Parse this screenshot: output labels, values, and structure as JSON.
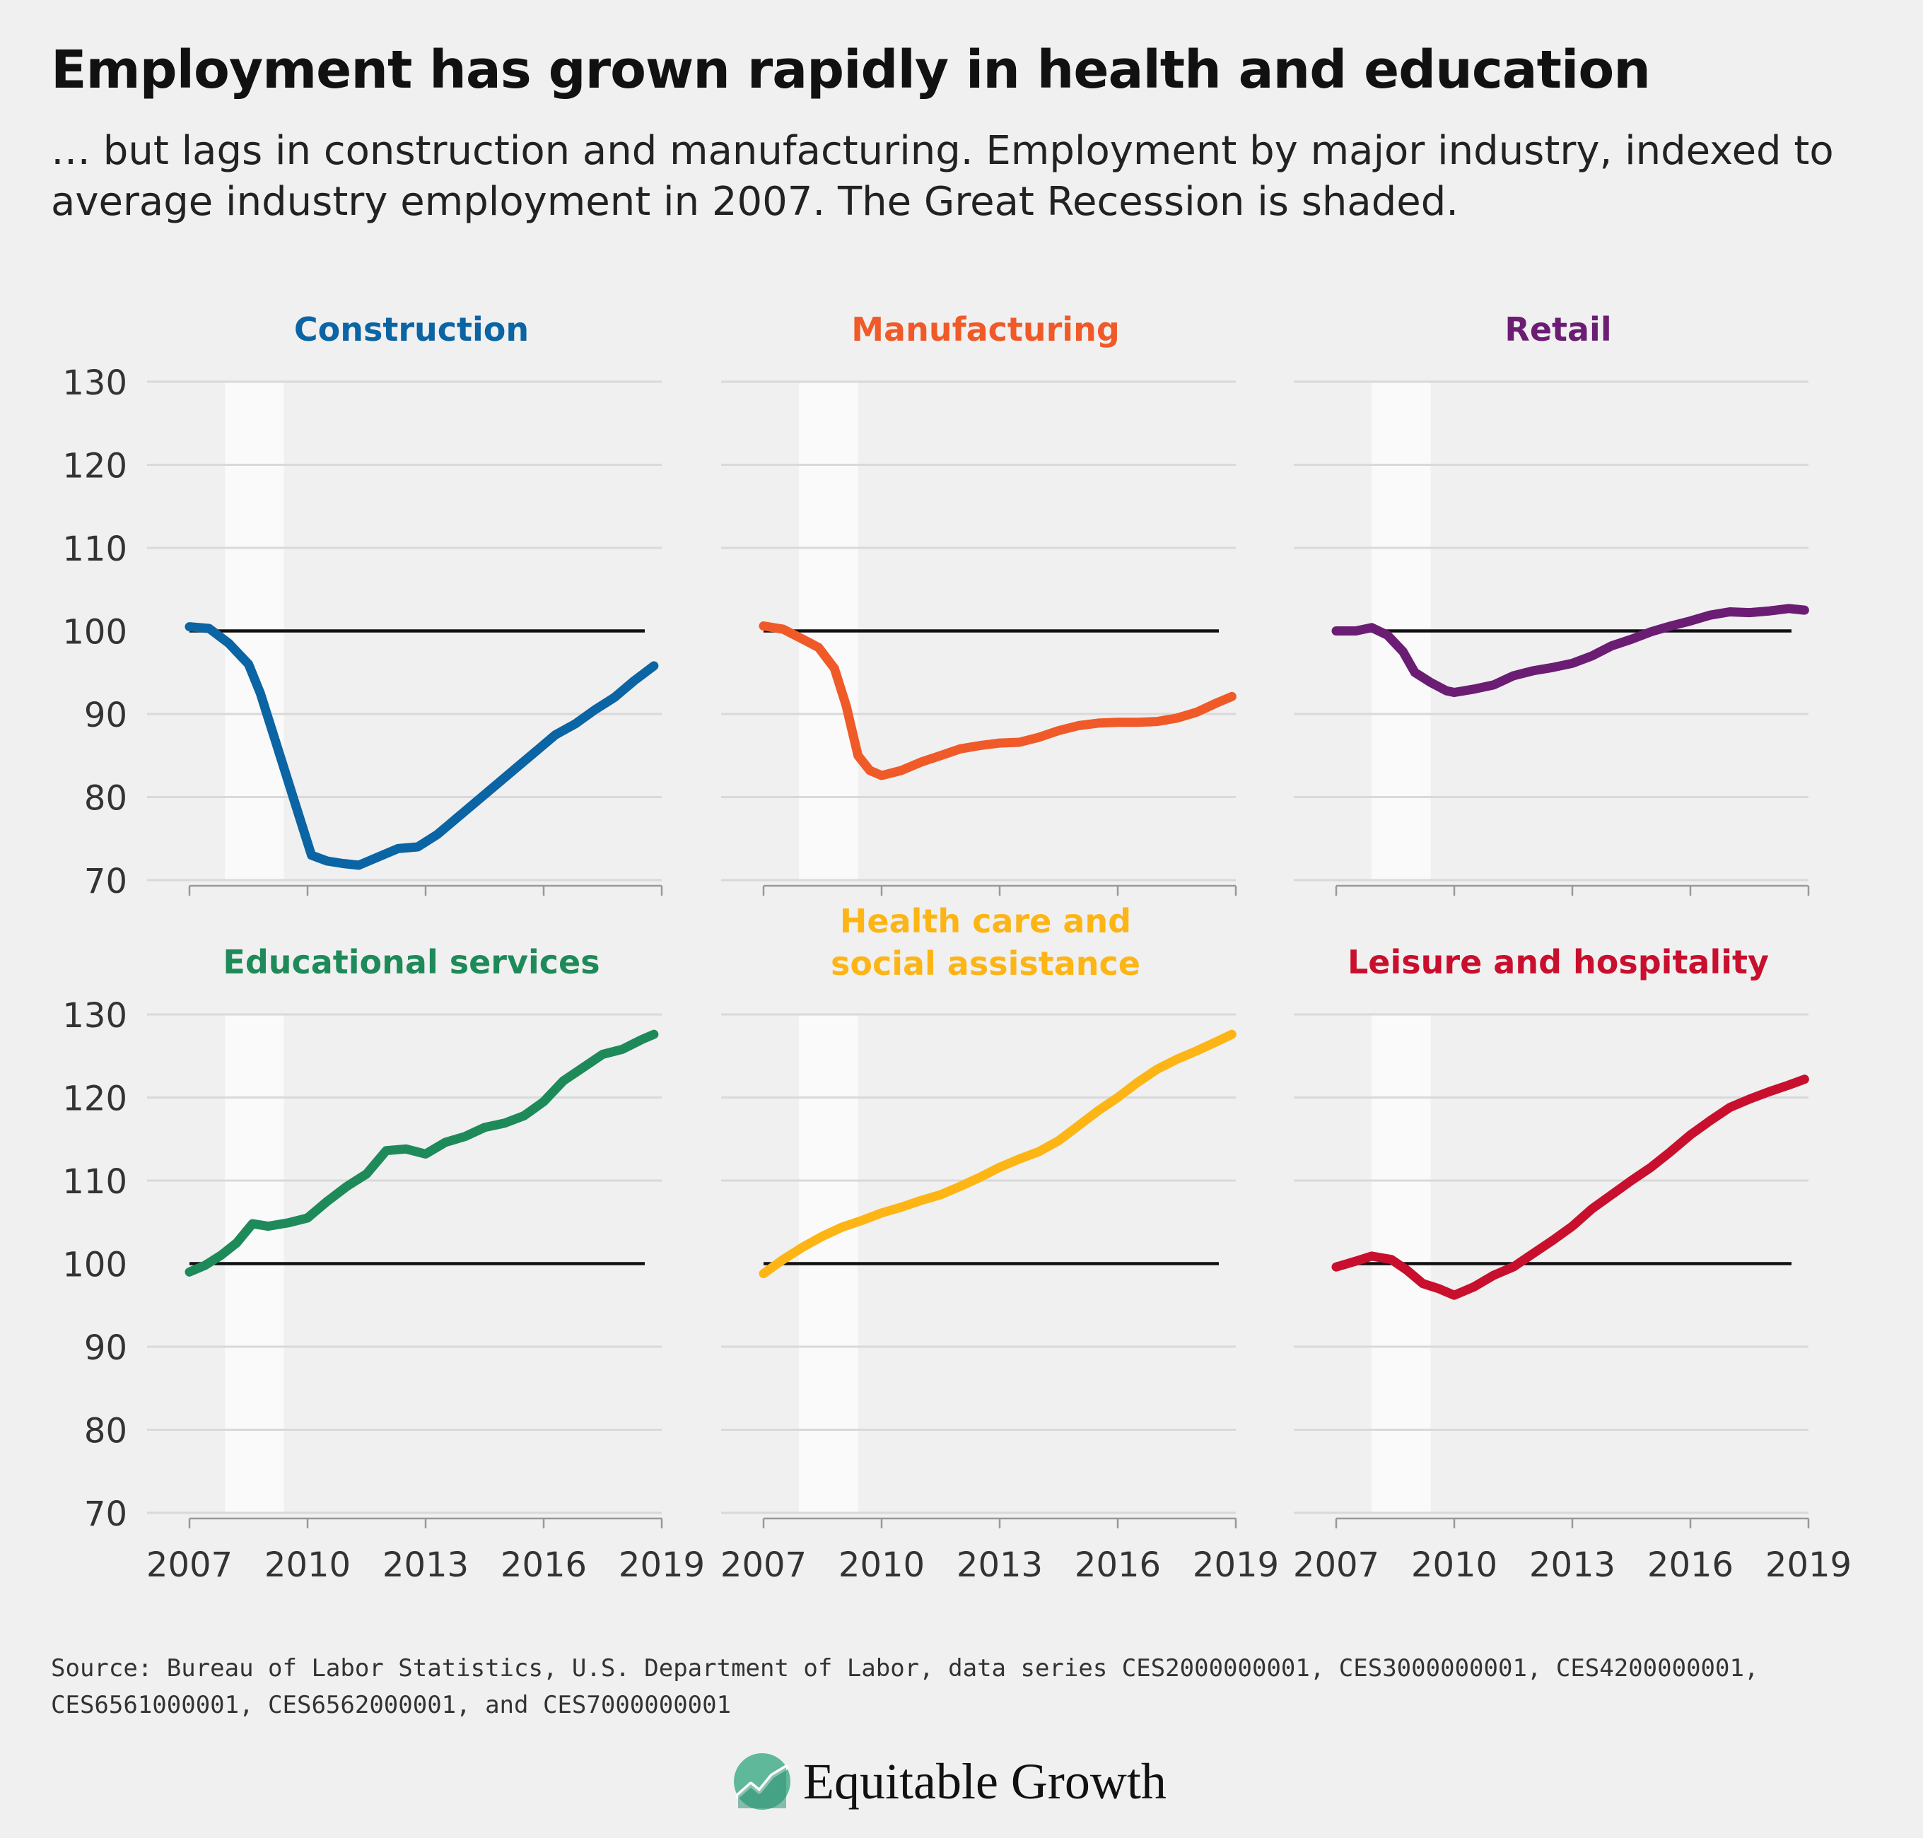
{
  "headline": "Employment has grown rapidly in health and education",
  "subhead": "… but lags in construction and manufacturing. Employment by major industry, indexed to average industry employment in 2007. The Great Recession is shaded.",
  "source": "Source: Bureau of Labor Statistics, U.S. Department of Labor, data series CES2000000001, CES3000000001, CES4200000001, CES6561000001, CES6562000001, and CES7000000001",
  "logo_text": "Equitable Growth",
  "logo_icon": "growth-chart-icon",
  "colors": {
    "background": "#f0f0f0",
    "recession_shade": "#fafafa",
    "gridline": "#d9d9d9",
    "baseline": "#111111",
    "axis_text": "#333333"
  },
  "chart_data": [
    {
      "type": "line",
      "title": "Construction",
      "color": "#0b64a3",
      "x_ticks": [
        "2007",
        "2010",
        "2013",
        "2016",
        "2019"
      ],
      "y_ticks": [
        70,
        80,
        90,
        100,
        110,
        120,
        130
      ],
      "xlim": [
        2007,
        2019
      ],
      "ylim": [
        70,
        130
      ],
      "reference_line": 100,
      "shaded_period": [
        2007.9,
        2009.4
      ],
      "grid": true,
      "x": [
        2007.0,
        2007.5,
        2008.0,
        2008.5,
        2008.8,
        2009.2,
        2009.6,
        2009.9,
        2010.1,
        2010.5,
        2010.9,
        2011.3,
        2011.8,
        2012.3,
        2012.8,
        2013.3,
        2013.8,
        2014.3,
        2014.8,
        2015.3,
        2015.8,
        2016.3,
        2016.8,
        2017.3,
        2017.8,
        2018.3,
        2018.8
      ],
      "y": [
        100.5,
        100.3,
        98.5,
        96.0,
        92.5,
        86.5,
        80.5,
        76.0,
        73.0,
        72.3,
        72.0,
        71.8,
        72.8,
        73.8,
        74.0,
        75.5,
        77.5,
        79.5,
        81.5,
        83.5,
        85.5,
        87.5,
        88.8,
        90.5,
        92.0,
        94.0,
        95.8
      ]
    },
    {
      "type": "line",
      "title": "Manufacturing",
      "color": "#f05a28",
      "x_ticks": [
        "2007",
        "2010",
        "2013",
        "2016",
        "2019"
      ],
      "y_ticks": [
        70,
        80,
        90,
        100,
        110,
        120,
        130
      ],
      "xlim": [
        2007,
        2019
      ],
      "ylim": [
        70,
        130
      ],
      "reference_line": 100,
      "shaded_period": [
        2007.9,
        2009.4
      ],
      "grid": true,
      "x": [
        2007.0,
        2007.5,
        2008.0,
        2008.4,
        2008.8,
        2009.1,
        2009.4,
        2009.7,
        2010.0,
        2010.5,
        2011.0,
        2011.5,
        2012.0,
        2012.5,
        2013.0,
        2013.5,
        2014.0,
        2014.5,
        2015.0,
        2015.5,
        2016.0,
        2016.5,
        2017.0,
        2017.5,
        2018.0,
        2018.5,
        2018.9
      ],
      "y": [
        100.6,
        100.2,
        99.0,
        98.0,
        95.5,
        91.0,
        85.0,
        83.2,
        82.6,
        83.2,
        84.2,
        85.0,
        85.8,
        86.2,
        86.5,
        86.6,
        87.2,
        88.0,
        88.6,
        88.9,
        89.0,
        89.0,
        89.1,
        89.5,
        90.2,
        91.3,
        92.1
      ]
    },
    {
      "type": "line",
      "title": "Retail",
      "color": "#6b1d74",
      "x_ticks": [
        "2007",
        "2010",
        "2013",
        "2016",
        "2019"
      ],
      "y_ticks": [
        70,
        80,
        90,
        100,
        110,
        120,
        130
      ],
      "xlim": [
        2007,
        2019
      ],
      "ylim": [
        70,
        130
      ],
      "reference_line": 100,
      "shaded_period": [
        2007.9,
        2009.4
      ],
      "grid": true,
      "x": [
        2007.0,
        2007.5,
        2007.9,
        2008.3,
        2008.7,
        2009.0,
        2009.4,
        2009.8,
        2010.0,
        2010.5,
        2011.0,
        2011.5,
        2012.0,
        2012.5,
        2013.0,
        2013.5,
        2014.0,
        2014.5,
        2015.0,
        2015.5,
        2016.0,
        2016.5,
        2017.0,
        2017.5,
        2018.0,
        2018.5,
        2018.9
      ],
      "y": [
        100.0,
        100.0,
        100.4,
        99.5,
        97.5,
        95.0,
        93.8,
        92.8,
        92.6,
        93.0,
        93.5,
        94.6,
        95.2,
        95.6,
        96.1,
        97.0,
        98.2,
        99.0,
        99.9,
        100.6,
        101.2,
        101.9,
        102.3,
        102.2,
        102.4,
        102.7,
        102.5
      ]
    },
    {
      "type": "line",
      "title": "Educational services",
      "color": "#1e8a5a",
      "x_ticks": [
        "2007",
        "2010",
        "2013",
        "2016",
        "2019"
      ],
      "y_ticks": [
        70,
        80,
        90,
        100,
        110,
        120,
        130
      ],
      "xlim": [
        2007,
        2019
      ],
      "ylim": [
        70,
        130
      ],
      "reference_line": 100,
      "shaded_period": [
        2007.9,
        2009.4
      ],
      "grid": true,
      "x": [
        2007.0,
        2007.4,
        2007.8,
        2008.2,
        2008.6,
        2009.0,
        2009.5,
        2010.0,
        2010.5,
        2011.0,
        2011.5,
        2012.0,
        2012.5,
        2013.0,
        2013.5,
        2014.0,
        2014.5,
        2015.0,
        2015.5,
        2016.0,
        2016.5,
        2017.0,
        2017.5,
        2018.0,
        2018.5,
        2018.8
      ],
      "y": [
        99.0,
        99.8,
        101.0,
        102.5,
        104.8,
        104.5,
        104.9,
        105.5,
        107.5,
        109.3,
        110.8,
        113.6,
        113.8,
        113.2,
        114.6,
        115.3,
        116.4,
        116.9,
        117.8,
        119.5,
        122.0,
        123.6,
        125.2,
        125.8,
        127.0,
        127.6
      ]
    },
    {
      "type": "line",
      "title": "Health care and social assistance",
      "color": "#fdb515",
      "x_ticks": [
        "2007",
        "2010",
        "2013",
        "2016",
        "2019"
      ],
      "y_ticks": [
        70,
        80,
        90,
        100,
        110,
        120,
        130
      ],
      "xlim": [
        2007,
        2019
      ],
      "ylim": [
        70,
        130
      ],
      "reference_line": 100,
      "shaded_period": [
        2007.9,
        2009.4
      ],
      "grid": true,
      "x": [
        2007.0,
        2007.5,
        2008.0,
        2008.5,
        2009.0,
        2009.5,
        2010.0,
        2010.5,
        2011.0,
        2011.5,
        2012.0,
        2012.5,
        2013.0,
        2013.5,
        2014.0,
        2014.5,
        2015.0,
        2015.5,
        2016.0,
        2016.5,
        2017.0,
        2017.5,
        2018.0,
        2018.5,
        2018.9
      ],
      "y": [
        98.8,
        100.5,
        102.0,
        103.3,
        104.4,
        105.2,
        106.1,
        106.8,
        107.6,
        108.3,
        109.3,
        110.4,
        111.6,
        112.6,
        113.5,
        114.8,
        116.6,
        118.4,
        120.0,
        121.8,
        123.4,
        124.6,
        125.6,
        126.7,
        127.6
      ]
    },
    {
      "type": "line",
      "title": "Leisure and hospitality",
      "color": "#c8102e",
      "x_ticks": [
        "2007",
        "2010",
        "2013",
        "2016",
        "2019"
      ],
      "y_ticks": [
        70,
        80,
        90,
        100,
        110,
        120,
        130
      ],
      "xlim": [
        2007,
        2019
      ],
      "ylim": [
        70,
        130
      ],
      "reference_line": 100,
      "shaded_period": [
        2007.9,
        2009.4
      ],
      "grid": true,
      "x": [
        2007.0,
        2007.5,
        2007.9,
        2008.4,
        2008.8,
        2009.2,
        2009.6,
        2010.0,
        2010.5,
        2011.0,
        2011.5,
        2012.0,
        2012.5,
        2013.0,
        2013.5,
        2014.0,
        2014.5,
        2015.0,
        2015.5,
        2016.0,
        2016.5,
        2017.0,
        2017.5,
        2018.0,
        2018.5,
        2018.9
      ],
      "y": [
        99.6,
        100.3,
        100.9,
        100.5,
        99.2,
        97.6,
        97.0,
        96.2,
        97.2,
        98.6,
        99.6,
        101.2,
        102.8,
        104.5,
        106.6,
        108.3,
        110.0,
        111.6,
        113.5,
        115.5,
        117.2,
        118.8,
        119.8,
        120.7,
        121.5,
        122.2
      ]
    }
  ]
}
